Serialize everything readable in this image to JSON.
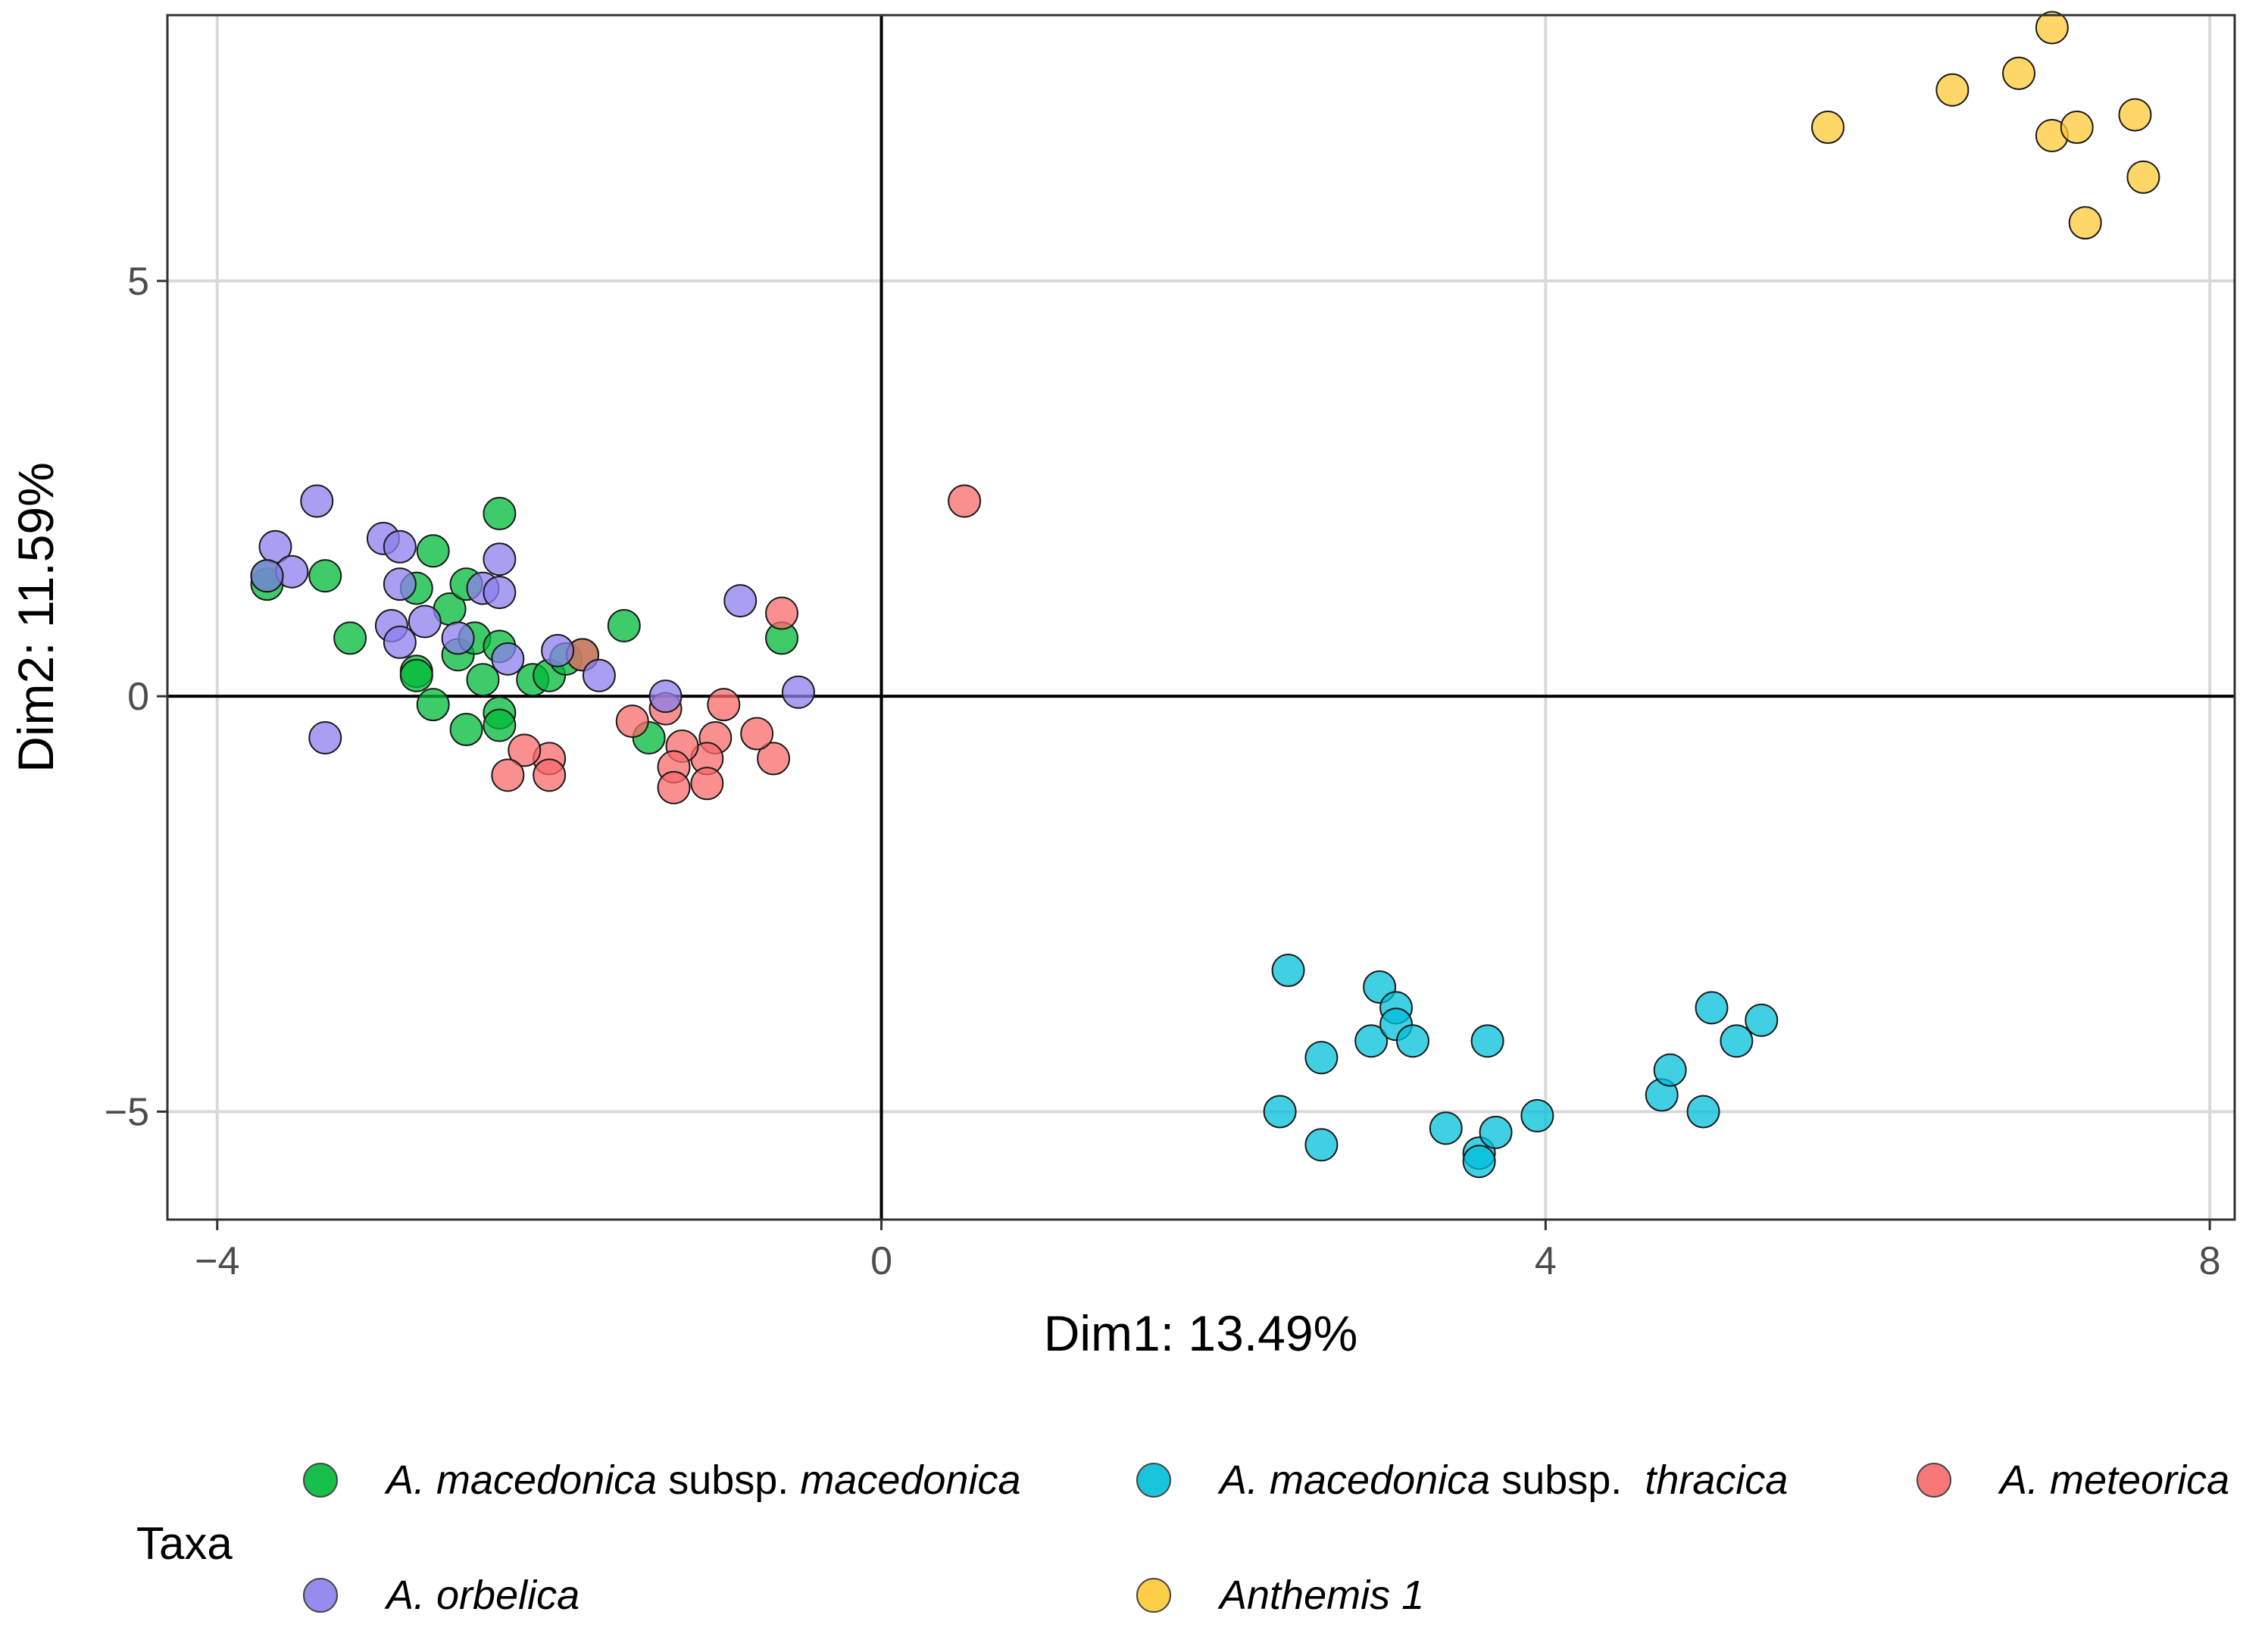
{
  "chart_data": {
    "type": "scatter",
    "xlabel": "Dim1: 13.49%",
    "ylabel": "Dim2: 11.59%",
    "xlim": [
      -4.3,
      8.15
    ],
    "ylim": [
      -6.3,
      8.2
    ],
    "x_ticks": [
      -4,
      0,
      4,
      8
    ],
    "y_ticks": [
      -5,
      0,
      5
    ],
    "x_tick_labels": [
      "−4",
      "0",
      "4",
      "8"
    ],
    "y_tick_labels": [
      "−5",
      "0",
      "5"
    ],
    "grid": true,
    "reference_lines": {
      "x": 0,
      "y": 0
    },
    "legend_position": "bottom",
    "legend_title": "Taxa",
    "series": [
      {
        "name": "A. macedonica subsp. macedonica",
        "color": "#00BA38",
        "points": [
          [
            -3.7,
            1.35
          ],
          [
            -3.7,
            1.45
          ],
          [
            -3.35,
            1.45
          ],
          [
            -3.2,
            0.7
          ],
          [
            -2.7,
            1.75
          ],
          [
            -2.8,
            1.3
          ],
          [
            -2.8,
            0.3
          ],
          [
            -2.8,
            0.25
          ],
          [
            -2.6,
            1.05
          ],
          [
            -2.7,
            -0.1
          ],
          [
            -2.55,
            0.5
          ],
          [
            -2.5,
            1.35
          ],
          [
            -2.45,
            0.7
          ],
          [
            -2.4,
            0.2
          ],
          [
            -2.5,
            -0.4
          ],
          [
            -2.3,
            2.2
          ],
          [
            -2.3,
            0.6
          ],
          [
            -2.3,
            -0.2
          ],
          [
            -2.3,
            -0.35
          ],
          [
            -2.1,
            0.2
          ],
          [
            -2.0,
            0.25
          ],
          [
            -1.9,
            0.45
          ],
          [
            -1.8,
            0.5
          ],
          [
            -1.55,
            0.85
          ],
          [
            -1.4,
            -0.5
          ],
          [
            -0.6,
            0.7
          ]
        ]
      },
      {
        "name": "A. macedonica subsp. thracica",
        "color": "#00BFDA",
        "points": [
          [
            2.45,
            -3.3
          ],
          [
            2.4,
            -5.0
          ],
          [
            2.65,
            -4.35
          ],
          [
            2.65,
            -5.4
          ],
          [
            2.95,
            -4.15
          ],
          [
            3.0,
            -3.5
          ],
          [
            3.1,
            -3.75
          ],
          [
            3.1,
            -3.95
          ],
          [
            3.2,
            -4.15
          ],
          [
            3.4,
            -5.2
          ],
          [
            3.6,
            -5.5
          ],
          [
            3.6,
            -5.6
          ],
          [
            3.65,
            -4.15
          ],
          [
            3.7,
            -5.25
          ],
          [
            3.95,
            -5.05
          ],
          [
            4.7,
            -4.8
          ],
          [
            4.75,
            -4.5
          ],
          [
            4.95,
            -5.0
          ],
          [
            5.0,
            -3.75
          ],
          [
            5.15,
            -4.15
          ],
          [
            5.3,
            -3.9
          ]
        ]
      },
      {
        "name": "A. meteorica",
        "color": "#F8696B",
        "points": [
          [
            0.5,
            2.35
          ],
          [
            -0.6,
            1.0
          ],
          [
            -0.65,
            -0.75
          ],
          [
            -0.75,
            -0.45
          ],
          [
            -0.95,
            -0.1
          ],
          [
            -1.0,
            -0.5
          ],
          [
            -1.05,
            -0.75
          ],
          [
            -1.05,
            -1.05
          ],
          [
            -1.2,
            -0.6
          ],
          [
            -1.25,
            -0.85
          ],
          [
            -1.25,
            -1.1
          ],
          [
            -1.3,
            -0.15
          ],
          [
            -1.5,
            -0.3
          ],
          [
            -1.8,
            0.5
          ],
          [
            -2.0,
            -0.75
          ],
          [
            -2.0,
            -0.95
          ],
          [
            -2.15,
            -0.65
          ],
          [
            -2.25,
            -0.95
          ]
        ]
      },
      {
        "name": "A. orbelica",
        "color": "#8B7FEE",
        "points": [
          [
            -3.4,
            2.35
          ],
          [
            -3.65,
            1.8
          ],
          [
            -3.55,
            1.5
          ],
          [
            -3.7,
            1.45
          ],
          [
            -3.35,
            -0.5
          ],
          [
            -3.0,
            1.9
          ],
          [
            -2.9,
            1.8
          ],
          [
            -2.95,
            0.85
          ],
          [
            -2.9,
            0.65
          ],
          [
            -2.9,
            1.35
          ],
          [
            -2.75,
            0.9
          ],
          [
            -2.55,
            0.7
          ],
          [
            -2.4,
            1.3
          ],
          [
            -2.3,
            1.25
          ],
          [
            -2.3,
            1.65
          ],
          [
            -2.25,
            0.45
          ],
          [
            -1.95,
            0.55
          ],
          [
            -1.7,
            0.25
          ],
          [
            -1.3,
            0.0
          ],
          [
            -0.85,
            1.15
          ],
          [
            -0.5,
            0.05
          ]
        ]
      },
      {
        "name": "Anthemis 1",
        "color": "#FFC935",
        "points": [
          [
            5.7,
            6.85
          ],
          [
            6.45,
            7.3
          ],
          [
            6.85,
            7.5
          ],
          [
            7.05,
            8.05
          ],
          [
            7.05,
            6.75
          ],
          [
            7.2,
            6.85
          ],
          [
            7.25,
            5.7
          ],
          [
            7.55,
            7.0
          ],
          [
            7.6,
            6.25
          ]
        ]
      }
    ]
  },
  "legend": {
    "title": "Taxa",
    "items": [
      {
        "italic1": "A. macedonica",
        "mid": " subsp. ",
        "italic2": "macedonica",
        "color": "#00BA38"
      },
      {
        "italic1": "A. macedonica",
        "mid": " subsp.  ",
        "italic2": "thracica",
        "color": "#00BFDA"
      },
      {
        "italic1": "A. meteorica",
        "mid": "",
        "italic2": "",
        "color": "#F8696B"
      },
      {
        "italic1": "A. orbelica",
        "mid": "",
        "italic2": "",
        "color": "#8B7FEE"
      },
      {
        "italic1": "Anthemis 1",
        "mid": "",
        "italic2": "",
        "color": "#FFC935"
      }
    ]
  }
}
